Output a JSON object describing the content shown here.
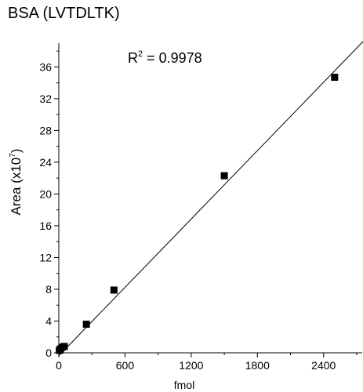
{
  "chart_data": {
    "type": "scatter",
    "title": "BSA (LVTDLTK)",
    "xlabel": "fmol",
    "ylabel": "Area (x10",
    "ylabel_sup": "7",
    "ylabel_end": ")",
    "annotation": {
      "prefix": "R",
      "sup": "2",
      "text": " = 0.9978"
    },
    "xlim": [
      0,
      2750
    ],
    "ylim": [
      0,
      39
    ],
    "x_ticks": [
      0,
      600,
      1200,
      1800,
      2400
    ],
    "x_tick_labels": [
      "0",
      "600",
      "1200",
      "1800",
      "2400"
    ],
    "y_ticks": [
      0,
      4,
      8,
      12,
      16,
      20,
      24,
      28,
      32,
      36
    ],
    "y_tick_labels": [
      "0",
      "4",
      "8",
      "12",
      "16",
      "20",
      "24",
      "28",
      "32",
      "36"
    ],
    "points": [
      {
        "x": 5,
        "y": 0.3
      },
      {
        "x": 15,
        "y": 0.5
      },
      {
        "x": 30,
        "y": 0.7
      },
      {
        "x": 50,
        "y": 0.8
      },
      {
        "x": 250,
        "y": 3.6
      },
      {
        "x": 500,
        "y": 7.9
      },
      {
        "x": 1500,
        "y": 22.3
      },
      {
        "x": 2500,
        "y": 34.7
      }
    ],
    "fit_line": {
      "slope": 0.01435,
      "intercept": -0.37
    },
    "grid": false,
    "legend": "none"
  }
}
